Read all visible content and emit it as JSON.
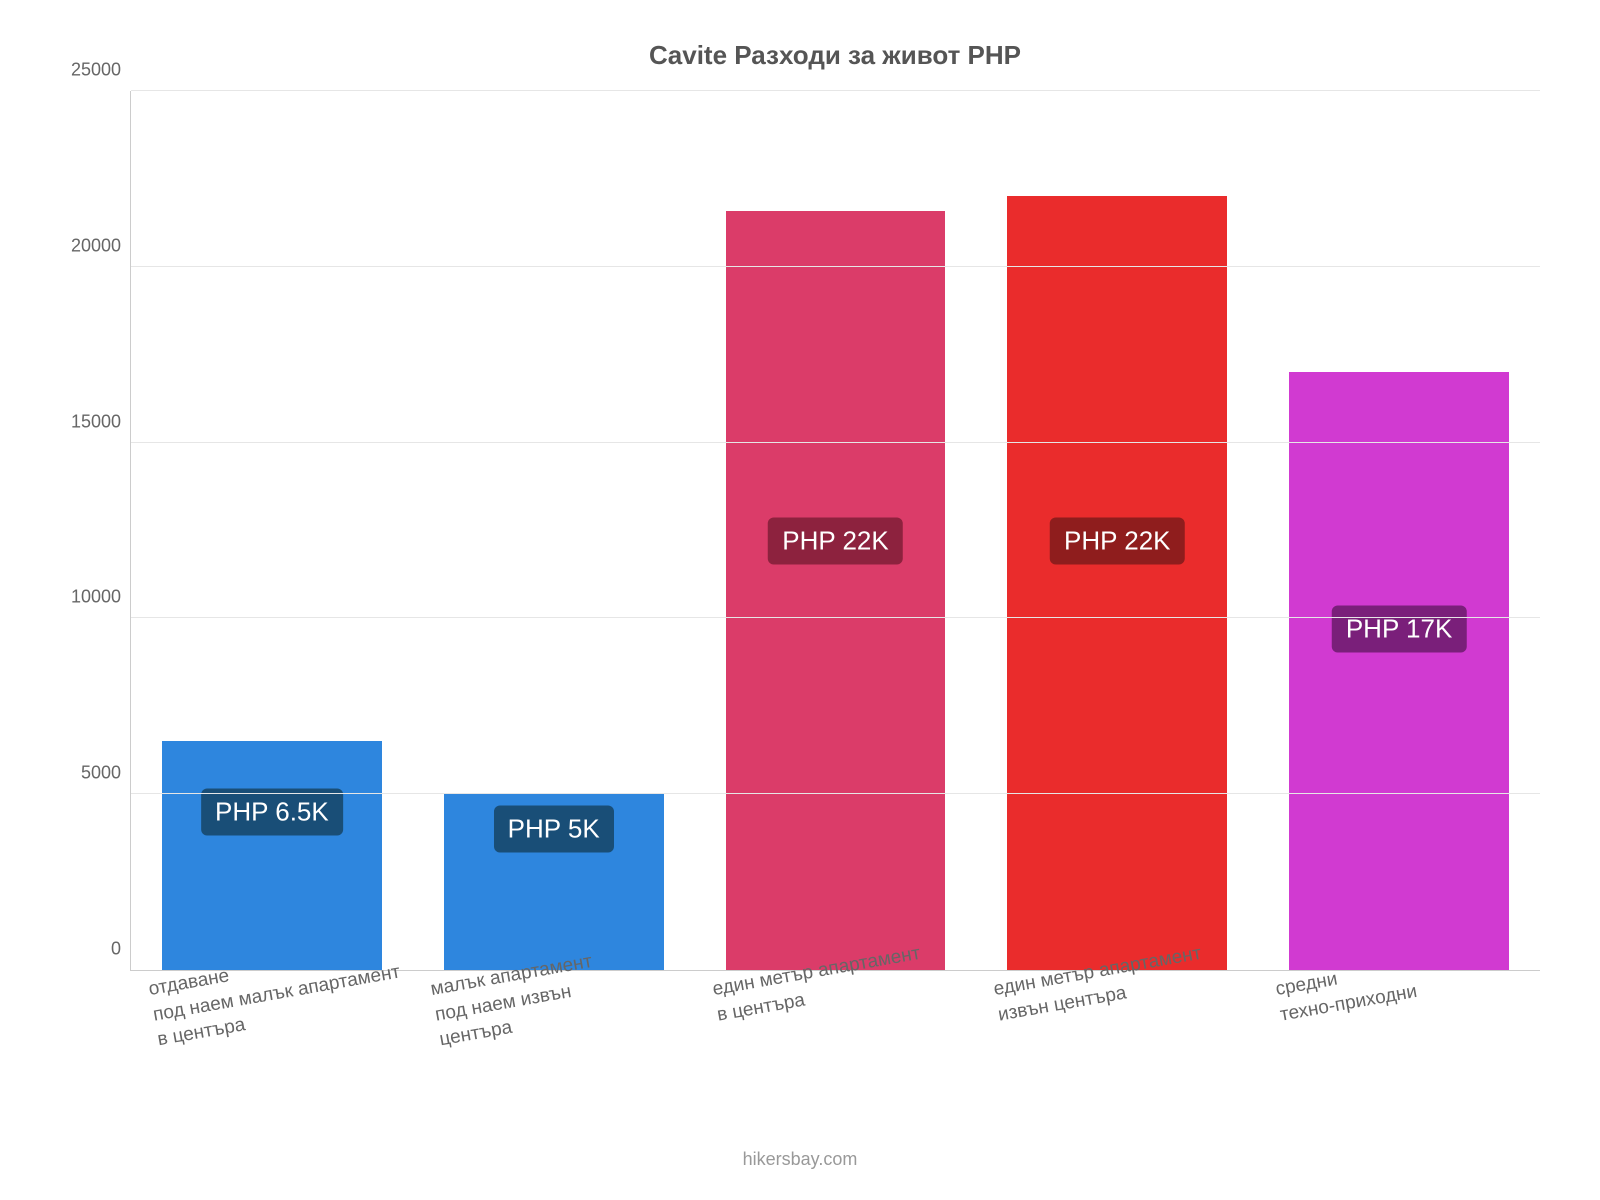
{
  "chart": {
    "type": "bar",
    "title": "Cavite Разходи за живот PHP",
    "title_fontsize": 26,
    "title_color": "#555555",
    "background_color": "#ffffff",
    "grid_color": "#e6e6e6",
    "axis_color": "#cccccc",
    "tick_label_color": "#666666",
    "tick_label_fontsize": 18,
    "x_tick_label_fontsize": 19,
    "x_tick_rotation": -10,
    "ylim": [
      0,
      25000
    ],
    "ytick_step": 5000,
    "yticks": [
      {
        "value": 0,
        "label": "0"
      },
      {
        "value": 5000,
        "label": "5000"
      },
      {
        "value": 10000,
        "label": "10000"
      },
      {
        "value": 15000,
        "label": "15000"
      },
      {
        "value": 20000,
        "label": "20000"
      },
      {
        "value": 25000,
        "label": "25000"
      }
    ],
    "bar_width_pct": 78,
    "bars": [
      {
        "category": "отдаване\nпод наем малък апартамент\nв центъра",
        "value": 6500,
        "bar_color": "#2e86de",
        "value_label": "PHP 6.5K",
        "value_label_bg": "#194e77",
        "value_label_y": 4500
      },
      {
        "category": "малък апартамент\nпод наем извън\nцентъра",
        "value": 5000,
        "bar_color": "#2e86de",
        "value_label": "PHP 5K",
        "value_label_bg": "#194e77",
        "value_label_y": 4000
      },
      {
        "category": "един метър апартамент\nв центъра",
        "value": 21600,
        "bar_color": "#db3c69",
        "value_label": "PHP 22K",
        "value_label_bg": "#8d223e",
        "value_label_y": 12200
      },
      {
        "category": "един метър апартамент\nизвън центъра",
        "value": 22000,
        "bar_color": "#ea2c2c",
        "value_label": "PHP 22K",
        "value_label_bg": "#8f1d1d",
        "value_label_y": 12200
      },
      {
        "category": "средни\nтехно-приходни",
        "value": 17000,
        "bar_color": "#d13ad1",
        "value_label": "PHP 17K",
        "value_label_bg": "#7a1f7a",
        "value_label_y": 9700
      }
    ],
    "footer": "hikersbay.com",
    "footer_color": "#999999",
    "footer_fontsize": 18,
    "value_label_fontsize": 26,
    "value_label_text_color": "#ffffff"
  }
}
